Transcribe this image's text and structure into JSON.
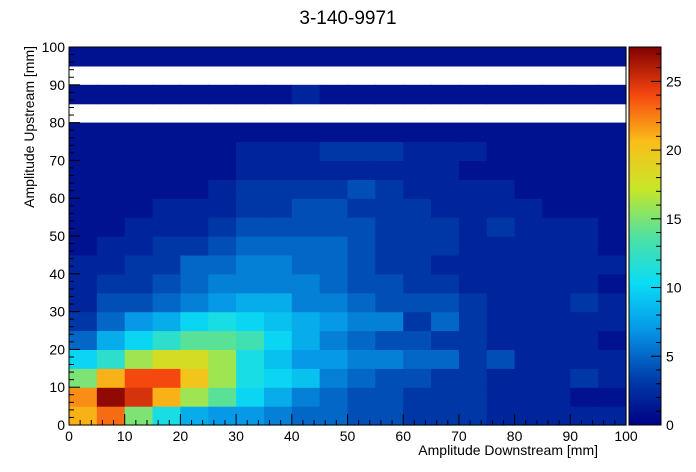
{
  "chart_data": {
    "type": "heatmap",
    "title": "3-140-9971",
    "xlabel": "Amplitude Downstream [mm]",
    "ylabel": "Amplitude Upstream [mm]",
    "xlim": [
      0,
      100
    ],
    "ylim": [
      0,
      100
    ],
    "zlim": [
      0,
      27.5
    ],
    "bin_width": 5,
    "x_ticks": [
      "0",
      "10",
      "20",
      "30",
      "40",
      "50",
      "60",
      "70",
      "80",
      "90",
      "100"
    ],
    "y_ticks": [
      "0",
      "10",
      "20",
      "30",
      "40",
      "50",
      "60",
      "70",
      "80",
      "90",
      "100"
    ],
    "z_ticks": [
      "0",
      "5",
      "10",
      "15",
      "20",
      "25"
    ],
    "empty_y_bands": [
      [
        80,
        85
      ],
      [
        90,
        95
      ]
    ],
    "rows_bottom_to_top": [
      [
        21,
        23,
        15,
        11,
        8,
        7,
        7,
        6,
        5,
        5,
        4,
        4,
        3,
        3,
        3,
        2,
        2,
        2,
        2,
        2
      ],
      [
        22,
        27,
        25,
        21,
        16,
        14,
        10,
        8,
        6,
        5,
        4,
        4,
        3,
        3,
        3,
        2,
        2,
        2,
        1,
        1
      ],
      [
        15,
        21,
        24,
        24,
        20,
        16,
        11,
        10,
        9,
        6,
        5,
        4,
        4,
        3,
        3,
        2,
        2,
        2,
        3,
        2
      ],
      [
        10,
        12,
        16,
        18,
        18,
        16,
        11,
        9,
        7,
        7,
        6,
        6,
        5,
        5,
        3,
        4,
        2,
        2,
        2,
        2
      ],
      [
        5,
        8,
        10,
        12,
        14,
        14,
        13,
        10,
        8,
        6,
        5,
        4,
        4,
        3,
        3,
        2,
        2,
        2,
        2,
        1
      ],
      [
        3,
        5,
        7,
        8,
        10,
        11,
        10,
        9,
        8,
        7,
        6,
        6,
        3,
        5,
        3,
        2,
        2,
        2,
        2,
        2
      ],
      [
        2,
        4,
        4,
        5,
        6,
        7,
        8,
        8,
        6,
        6,
        5,
        4,
        4,
        4,
        3,
        2,
        2,
        2,
        3,
        2
      ],
      [
        2,
        3,
        3,
        4,
        5,
        6,
        6,
        6,
        6,
        5,
        4,
        4,
        3,
        3,
        2,
        2,
        2,
        2,
        2,
        1
      ],
      [
        2,
        2,
        3,
        3,
        5,
        5,
        6,
        6,
        5,
        5,
        4,
        3,
        3,
        2,
        2,
        2,
        2,
        2,
        2,
        2
      ],
      [
        1,
        2,
        2,
        3,
        3,
        4,
        5,
        5,
        5,
        5,
        4,
        3,
        3,
        3,
        2,
        2,
        2,
        2,
        2,
        1
      ],
      [
        1,
        1,
        2,
        2,
        2,
        3,
        4,
        4,
        4,
        4,
        4,
        3,
        3,
        3,
        2,
        3,
        2,
        2,
        2,
        1
      ],
      [
        1,
        1,
        1,
        2,
        2,
        2,
        3,
        3,
        4,
        4,
        3,
        3,
        3,
        2,
        2,
        2,
        2,
        1,
        1,
        1
      ],
      [
        1,
        1,
        1,
        1,
        1,
        2,
        3,
        3,
        3,
        3,
        4,
        3,
        2,
        2,
        2,
        2,
        1,
        1,
        1,
        1
      ],
      [
        1,
        1,
        1,
        1,
        1,
        1,
        2,
        2,
        2,
        2,
        2,
        2,
        2,
        2,
        1,
        1,
        1,
        1,
        1,
        1
      ],
      [
        1,
        1,
        1,
        1,
        1,
        1,
        2,
        2,
        2,
        3,
        3,
        3,
        2,
        2,
        2,
        1,
        1,
        1,
        1,
        1
      ],
      [
        1,
        1,
        1,
        1,
        1,
        1,
        1,
        1,
        1,
        1,
        1,
        1,
        1,
        1,
        1,
        1,
        1,
        1,
        1,
        1
      ],
      [
        0,
        0,
        0,
        0,
        0,
        0,
        0,
        0,
        0,
        0,
        0,
        0,
        0,
        0,
        0,
        0,
        0,
        0,
        0,
        0
      ],
      [
        1,
        1,
        1,
        1,
        1,
        1,
        1,
        1,
        2,
        1,
        1,
        1,
        1,
        1,
        1,
        1,
        1,
        1,
        1,
        1
      ],
      [
        0,
        0,
        0,
        0,
        0,
        0,
        0,
        0,
        0,
        0,
        0,
        0,
        0,
        0,
        0,
        0,
        0,
        0,
        0,
        0
      ],
      [
        1,
        1,
        1,
        1,
        1,
        1,
        1,
        1,
        1,
        1,
        1,
        1,
        1,
        1,
        1,
        1,
        1,
        1,
        1,
        1
      ]
    ],
    "grid": false,
    "colormap": "rainbow"
  }
}
